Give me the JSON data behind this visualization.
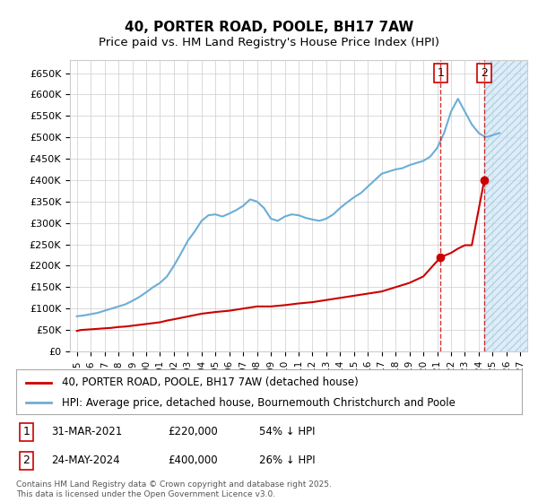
{
  "title": "40, PORTER ROAD, POOLE, BH17 7AW",
  "subtitle": "Price paid vs. HM Land Registry's House Price Index (HPI)",
  "ylabel": "",
  "xlabel": "",
  "ylim": [
    0,
    680000
  ],
  "yticks": [
    0,
    50000,
    100000,
    150000,
    200000,
    250000,
    300000,
    350000,
    400000,
    450000,
    500000,
    550000,
    600000,
    650000
  ],
  "ytick_labels": [
    "£0",
    "£50K",
    "£100K",
    "£150K",
    "£200K",
    "£250K",
    "£300K",
    "£350K",
    "£400K",
    "£450K",
    "£500K",
    "£550K",
    "£600K",
    "£650K"
  ],
  "xlim_min": 1994.5,
  "xlim_max": 2027.5,
  "hpi_color": "#6baed6",
  "price_color": "#cc0000",
  "dashed_line_color": "#cc0000",
  "point1_x": 2021.25,
  "point1_y": 220000,
  "point2_x": 2024.4,
  "point2_y": 400000,
  "point1_label": "1",
  "point2_label": "2",
  "annotation1": "31-MAR-2021     £220,000     54% ↓ HPI",
  "annotation2": "24-MAY-2024     £400,000     26% ↓ HPI",
  "legend_line1": "40, PORTER ROAD, POOLE, BH17 7AW (detached house)",
  "legend_line2": "HPI: Average price, detached house, Bournemouth Christchurch and Poole",
  "footer": "Contains HM Land Registry data © Crown copyright and database right 2025.\nThis data is licensed under the Open Government Licence v3.0.",
  "hatch_color": "#d0e8f5",
  "bg_color": "#ffffff",
  "grid_color": "#cccccc"
}
